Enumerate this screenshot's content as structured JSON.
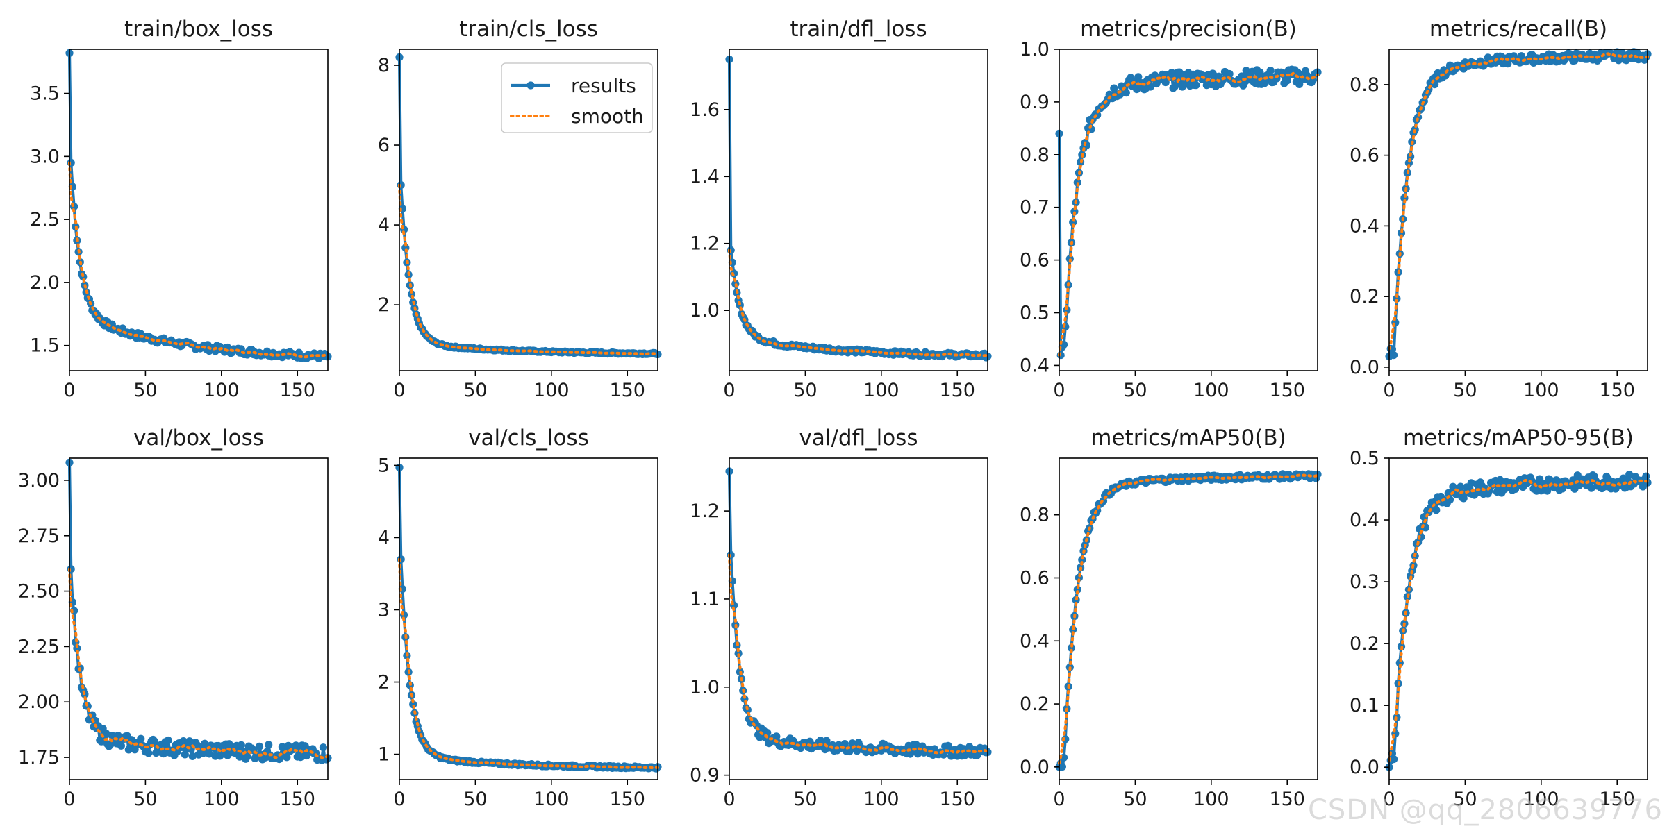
{
  "watermark": "CSDN @qq_2806639776",
  "legend": {
    "results": "results",
    "smooth": "smooth"
  },
  "colors": {
    "results": "#1f77b4",
    "smooth": "#ff7f0e"
  },
  "chart_data": [
    {
      "type": "line",
      "title": "train/box_loss",
      "xlim": [
        0,
        170
      ],
      "ylim": [
        1.3,
        3.85
      ],
      "xticks": [
        0,
        50,
        100,
        150
      ],
      "yticks": [
        1.5,
        2.0,
        2.5,
        3.0,
        3.5
      ],
      "tick_decimals": 1,
      "shape": "decay",
      "start": 3.82,
      "second": 2.95,
      "tail": 1.38,
      "mid": 1.75,
      "noise": 0.025,
      "legend": false
    },
    {
      "type": "line",
      "title": "train/cls_loss",
      "xlim": [
        0,
        170
      ],
      "ylim": [
        0.35,
        8.4
      ],
      "xticks": [
        0,
        50,
        100,
        150
      ],
      "yticks": [
        2,
        4,
        6,
        8
      ],
      "tick_decimals": 0,
      "shape": "decay",
      "start": 8.2,
      "second": 5.0,
      "tail": 0.75,
      "mid": 1.05,
      "noise": 0.02,
      "legend": true
    },
    {
      "type": "line",
      "title": "train/dfl_loss",
      "xlim": [
        0,
        170
      ],
      "ylim": [
        0.82,
        1.78
      ],
      "xticks": [
        0,
        50,
        100,
        150
      ],
      "yticks": [
        1.0,
        1.2,
        1.4,
        1.6
      ],
      "tick_decimals": 1,
      "shape": "decay",
      "start": 1.75,
      "second": 1.18,
      "tail": 0.86,
      "mid": 0.92,
      "noise": 0.006,
      "legend": false
    },
    {
      "type": "line",
      "title": "metrics/precision(B)",
      "xlim": [
        0,
        170
      ],
      "ylim": [
        0.39,
        1.0
      ],
      "xticks": [
        0,
        50,
        100,
        150
      ],
      "yticks": [
        0.4,
        0.5,
        0.6,
        0.7,
        0.8,
        0.9,
        1.0
      ],
      "tick_decimals": 1,
      "shape": "rise",
      "start": 0.84,
      "dip": 0.41,
      "plateau": 0.95,
      "mid": 0.92,
      "noise": 0.015,
      "legend": false
    },
    {
      "type": "line",
      "title": "metrics/recall(B)",
      "xlim": [
        0,
        170
      ],
      "ylim": [
        -0.01,
        0.9
      ],
      "xticks": [
        0,
        50,
        100,
        150
      ],
      "yticks": [
        0.0,
        0.2,
        0.4,
        0.6,
        0.8
      ],
      "tick_decimals": 1,
      "shape": "rise",
      "start": 0.03,
      "dip": 0.03,
      "plateau": 0.885,
      "mid": 0.83,
      "noise": 0.012,
      "legend": false
    },
    {
      "type": "line",
      "title": "val/box_loss",
      "xlim": [
        0,
        170
      ],
      "ylim": [
        1.65,
        3.1
      ],
      "xticks": [
        0,
        50,
        100,
        150
      ],
      "yticks": [
        1.75,
        2.0,
        2.25,
        2.5,
        2.75,
        3.0
      ],
      "tick_decimals": 2,
      "shape": "decay",
      "start": 3.08,
      "second": 2.6,
      "tail": 1.76,
      "mid": 1.85,
      "noise": 0.035,
      "legend": false
    },
    {
      "type": "line",
      "title": "val/cls_loss",
      "xlim": [
        0,
        170
      ],
      "ylim": [
        0.65,
        5.1
      ],
      "xticks": [
        0,
        50,
        100,
        150
      ],
      "yticks": [
        1,
        2,
        3,
        4,
        5
      ],
      "tick_decimals": 0,
      "shape": "decay",
      "start": 4.97,
      "second": 3.7,
      "tail": 0.8,
      "mid": 0.98,
      "noise": 0.015,
      "legend": false
    },
    {
      "type": "line",
      "title": "val/dfl_loss",
      "xlim": [
        0,
        170
      ],
      "ylim": [
        0.895,
        1.26
      ],
      "xticks": [
        0,
        50,
        100,
        150
      ],
      "yticks": [
        0.9,
        1.0,
        1.1,
        1.2
      ],
      "tick_decimals": 1,
      "shape": "decay",
      "start": 1.245,
      "second": 1.15,
      "tail": 0.925,
      "mid": 0.945,
      "noise": 0.006,
      "legend": false
    },
    {
      "type": "line",
      "title": "metrics/mAP50(B)",
      "xlim": [
        0,
        170
      ],
      "ylim": [
        -0.04,
        0.98
      ],
      "xticks": [
        0,
        50,
        100,
        150
      ],
      "yticks": [
        0.0,
        0.2,
        0.4,
        0.6,
        0.8
      ],
      "tick_decimals": 1,
      "shape": "rise",
      "start": 0.0,
      "dip": 0.0,
      "plateau": 0.925,
      "mid": 0.885,
      "noise": 0.008,
      "legend": false
    },
    {
      "type": "line",
      "title": "metrics/mAP50-95(B)",
      "xlim": [
        0,
        170
      ],
      "ylim": [
        -0.02,
        0.5
      ],
      "xticks": [
        0,
        50,
        100,
        150
      ],
      "yticks": [
        0.0,
        0.1,
        0.2,
        0.3,
        0.4,
        0.5
      ],
      "tick_decimals": 1,
      "shape": "rise",
      "start": 0.0,
      "dip": 0.0,
      "plateau": 0.465,
      "mid": 0.43,
      "noise": 0.012,
      "legend": false
    }
  ]
}
